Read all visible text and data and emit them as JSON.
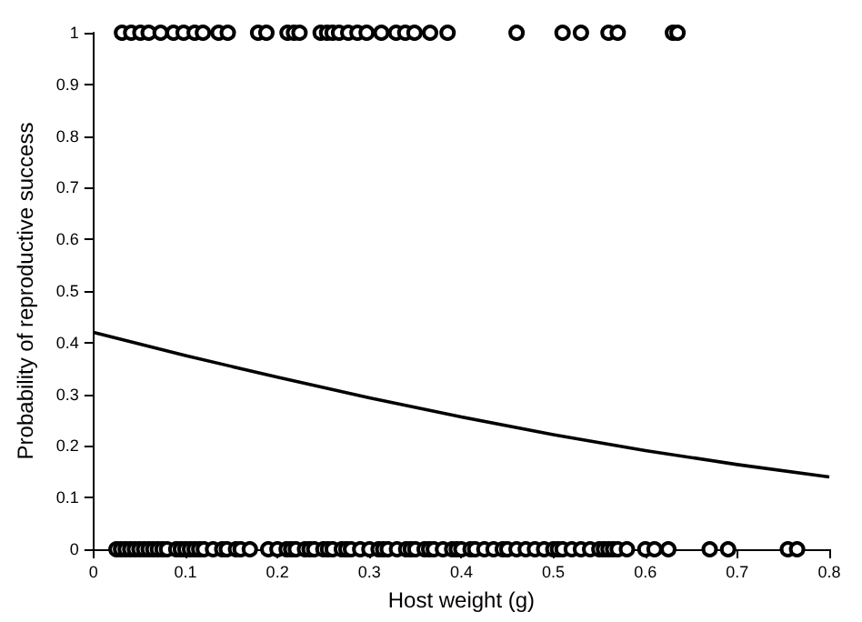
{
  "chart_data": {
    "type": "scatter",
    "xlabel": "Host weight (g)",
    "ylabel": "Probability of reproductive success",
    "xlim": [
      0,
      0.8
    ],
    "xticks": [
      0,
      0.1,
      0.2,
      0.3,
      0.4,
      0.5,
      0.6,
      0.7,
      0.8
    ],
    "ylim": [
      0,
      1
    ],
    "yticks": [
      0,
      0.1,
      0.2,
      0.3,
      0.4,
      0.5,
      0.6,
      0.7,
      0.8,
      0.9,
      1
    ],
    "grid": false,
    "marker": "circle",
    "series": [
      {
        "color": "#000000",
        "x": [
          0.031,
          0.041,
          0.051,
          0.06,
          0.073,
          0.087,
          0.098,
          0.11,
          0.119,
          0.136,
          0.146,
          0.179,
          0.188,
          0.211,
          0.218,
          0.224,
          0.247,
          0.254,
          0.26,
          0.267,
          0.277,
          0.287,
          0.297,
          0.313,
          0.329,
          0.339,
          0.349,
          0.366,
          0.385,
          0.46,
          0.51,
          0.53,
          0.56,
          0.57,
          0.63,
          0.635,
          0.025,
          0.03,
          0.035,
          0.04,
          0.045,
          0.05,
          0.055,
          0.06,
          0.065,
          0.07,
          0.075,
          0.08,
          0.09,
          0.095,
          0.1,
          0.105,
          0.11,
          0.115,
          0.12,
          0.13,
          0.14,
          0.145,
          0.155,
          0.16,
          0.17,
          0.19,
          0.2,
          0.21,
          0.215,
          0.22,
          0.23,
          0.235,
          0.24,
          0.25,
          0.255,
          0.26,
          0.27,
          0.275,
          0.28,
          0.29,
          0.3,
          0.31,
          0.315,
          0.32,
          0.33,
          0.34,
          0.345,
          0.35,
          0.36,
          0.365,
          0.37,
          0.38,
          0.39,
          0.395,
          0.4,
          0.41,
          0.415,
          0.425,
          0.435,
          0.445,
          0.45,
          0.46,
          0.47,
          0.48,
          0.49,
          0.5,
          0.505,
          0.51,
          0.52,
          0.53,
          0.54,
          0.55,
          0.555,
          0.56,
          0.565,
          0.57,
          0.58,
          0.6,
          0.61,
          0.625,
          0.67,
          0.69,
          0.755,
          0.765
        ],
        "values": [
          1,
          1,
          1,
          1,
          1,
          1,
          1,
          1,
          1,
          1,
          1,
          1,
          1,
          1,
          1,
          1,
          1,
          1,
          1,
          1,
          1,
          1,
          1,
          1,
          1,
          1,
          1,
          1,
          1,
          1,
          1,
          1,
          1,
          1,
          1,
          1,
          0,
          0,
          0,
          0,
          0,
          0,
          0,
          0,
          0,
          0,
          0,
          0,
          0,
          0,
          0,
          0,
          0,
          0,
          0,
          0,
          0,
          0,
          0,
          0,
          0,
          0,
          0,
          0,
          0,
          0,
          0,
          0,
          0,
          0,
          0,
          0,
          0,
          0,
          0,
          0,
          0,
          0,
          0,
          0,
          0,
          0,
          0,
          0,
          0,
          0,
          0,
          0,
          0,
          0,
          0,
          0,
          0,
          0,
          0,
          0,
          0,
          0,
          0,
          0,
          0,
          0,
          0,
          0,
          0,
          0,
          0,
          0,
          0,
          0,
          0,
          0,
          0,
          0,
          0,
          0,
          0,
          0,
          0,
          0
        ]
      },
      {
        "type": "line",
        "color": "#000000",
        "marker": "none",
        "line_style": "solid",
        "x": [
          0,
          0.1,
          0.2,
          0.3,
          0.4,
          0.5,
          0.6,
          0.7,
          0.8
        ],
        "values": [
          0.42,
          0.375,
          0.333,
          0.293,
          0.256,
          0.222,
          0.191,
          0.164,
          0.14
        ]
      }
    ]
  }
}
